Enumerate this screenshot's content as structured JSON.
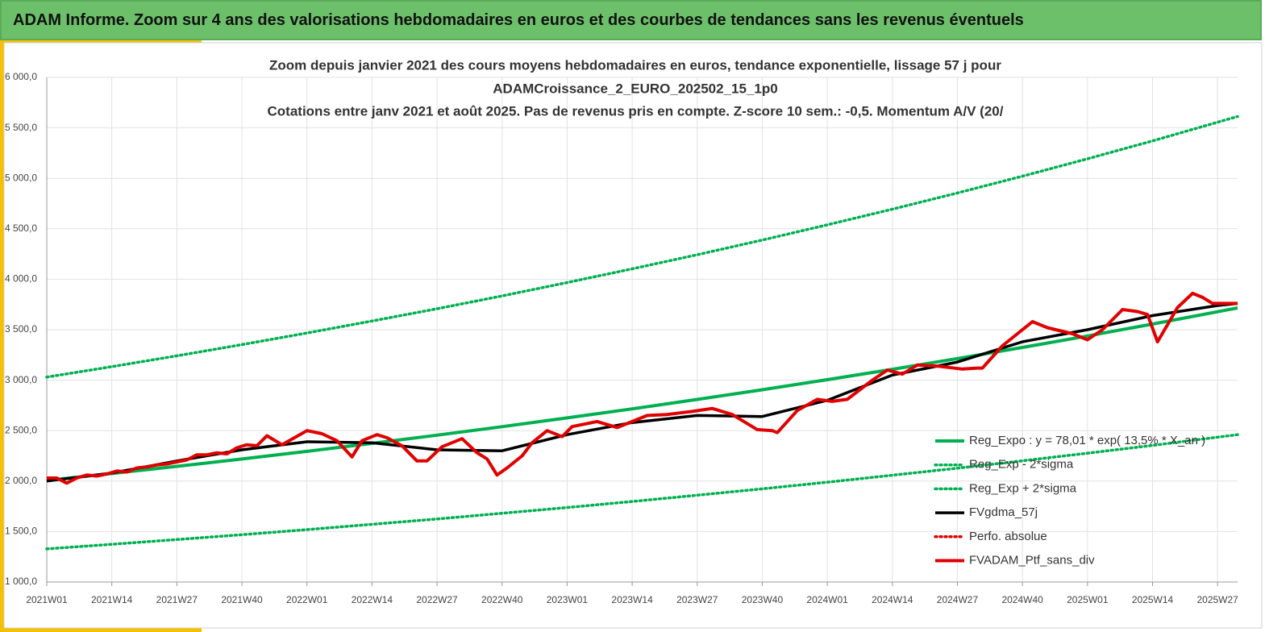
{
  "header": {
    "title": "ADAM Informe. Zoom sur 4 ans des valorisations hebdomadaires en euros et des courbes de tendances sans les revenus éventuels"
  },
  "chart_data": {
    "type": "line",
    "title": [
      "Zoom depuis janvier 2021 des cours moyens hebdomadaires  en euros, tendance exponentielle, lissage 57 j pour",
      "ADAMCroissance_2_EURO_202502_15_1p0",
      "Cotations  entre janv 2021 et août 2025. Pas de revenus pris en compte. Z-score 10 sem.: -0,5. Momentum A/V (20/"
    ],
    "xlim": [
      0,
      238
    ],
    "xticks": [
      {
        "value": 0,
        "label": "2021W01"
      },
      {
        "value": 13,
        "label": "2021W14"
      },
      {
        "value": 26,
        "label": "2021W27"
      },
      {
        "value": 39,
        "label": "2021W40"
      },
      {
        "value": 52,
        "label": "2022W01"
      },
      {
        "value": 65,
        "label": "2022W14"
      },
      {
        "value": 78,
        "label": "2022W27"
      },
      {
        "value": 91,
        "label": "2022W40"
      },
      {
        "value": 104,
        "label": "2023W01"
      },
      {
        "value": 117,
        "label": "2023W14"
      },
      {
        "value": 130,
        "label": "2023W27"
      },
      {
        "value": 143,
        "label": "2023W40"
      },
      {
        "value": 156,
        "label": "2024W01"
      },
      {
        "value": 169,
        "label": "2024W14"
      },
      {
        "value": 182,
        "label": "2024W27"
      },
      {
        "value": 195,
        "label": "2024W40"
      },
      {
        "value": 208,
        "label": "2025W01"
      },
      {
        "value": 221,
        "label": "2025W14"
      },
      {
        "value": 234,
        "label": "2025W27"
      }
    ],
    "ylim": [
      1000,
      6000
    ],
    "yticks": [
      {
        "value": 1000,
        "label": "1 000,0"
      },
      {
        "value": 1500,
        "label": "1 500,0"
      },
      {
        "value": 2000,
        "label": "2 000,0"
      },
      {
        "value": 2500,
        "label": "2 500,0"
      },
      {
        "value": 3000,
        "label": "3 000,0"
      },
      {
        "value": 3500,
        "label": "3 500,0"
      },
      {
        "value": 4000,
        "label": "4 000,0"
      },
      {
        "value": 4500,
        "label": "4 500,0"
      },
      {
        "value": 5000,
        "label": "5 000,0"
      },
      {
        "value": 5500,
        "label": "5 500,0"
      },
      {
        "value": 6000,
        "label": "6 000,0"
      }
    ],
    "grid": true,
    "legend": "lower-right",
    "series": [
      {
        "name": "Reg_Expo : y = 78,01 * exp( 13,5% * X_an )",
        "color": "#00b050",
        "style": "solid",
        "x": [
          0,
          13,
          26,
          39,
          52,
          65,
          78,
          91,
          104,
          117,
          130,
          143,
          156,
          169,
          182,
          195,
          208,
          221,
          234,
          238
        ],
        "values": [
          2006,
          2075,
          2146,
          2219,
          2295,
          2374,
          2455,
          2539,
          2626,
          2716,
          2809,
          2905,
          3005,
          3108,
          3214,
          3324,
          3438,
          3556,
          3678,
          3716
        ]
      },
      {
        "name": "Reg_Exp - 2*sigma",
        "color": "#00b050",
        "style": "dotted",
        "x": [
          0,
          13,
          26,
          39,
          52,
          65,
          78,
          91,
          104,
          117,
          130,
          143,
          156,
          169,
          182,
          195,
          208,
          221,
          234,
          238
        ],
        "values": [
          1328,
          1374,
          1421,
          1469,
          1519,
          1572,
          1625,
          1681,
          1738,
          1798,
          1860,
          1923,
          1989,
          2058,
          2128,
          2201,
          2276,
          2354,
          2435,
          2460
        ]
      },
      {
        "name": "Reg_Exp + 2*sigma",
        "color": "#00b050",
        "style": "dotted",
        "x": [
          0,
          13,
          26,
          39,
          52,
          65,
          78,
          91,
          104,
          117,
          130,
          143,
          156,
          169,
          182,
          195,
          208,
          221,
          234,
          238
        ],
        "values": [
          3030,
          3134,
          3241,
          3352,
          3467,
          3586,
          3708,
          3835,
          3967,
          4103,
          4243,
          4388,
          4539,
          4694,
          4855,
          5021,
          5193,
          5371,
          5556,
          5613
        ]
      },
      {
        "name": "FVgdma_57j",
        "color": "#000000",
        "style": "solid",
        "x": [
          0,
          13,
          26,
          39,
          52,
          65,
          78,
          91,
          104,
          117,
          130,
          143,
          156,
          169,
          182,
          195,
          208,
          221,
          234,
          238
        ],
        "values": [
          2000,
          2080,
          2200,
          2310,
          2390,
          2380,
          2310,
          2300,
          2460,
          2580,
          2650,
          2640,
          2800,
          3050,
          3180,
          3380,
          3500,
          3640,
          3740,
          3760
        ]
      },
      {
        "name": "Perfo. absolue",
        "color": "#e00000",
        "style": "dotted",
        "x": [],
        "values": []
      },
      {
        "name": "FVADAM_Ptf_sans_div",
        "color": "#e00000",
        "style": "solid",
        "x": [
          0,
          2,
          4,
          6,
          8,
          10,
          12,
          14,
          16,
          18,
          20,
          22,
          24,
          26,
          28,
          30,
          32,
          34,
          36,
          38,
          40,
          42,
          44,
          47,
          52,
          55,
          58,
          61,
          63,
          66,
          68,
          71,
          74,
          76,
          79,
          83,
          86,
          88,
          90,
          92,
          95,
          97,
          100,
          103,
          105,
          110,
          114,
          120,
          124,
          129,
          133,
          137,
          142,
          145,
          146,
          150,
          154,
          157,
          160,
          165,
          168,
          171,
          174,
          178,
          183,
          186,
          187,
          191,
          194,
          197,
          200,
          205,
          208,
          211,
          215,
          218,
          220,
          222,
          226,
          229,
          231,
          233,
          238
        ],
        "values": [
          2030,
          2030,
          1980,
          2030,
          2060,
          2050,
          2070,
          2100,
          2090,
          2130,
          2140,
          2160,
          2170,
          2190,
          2210,
          2260,
          2260,
          2280,
          2270,
          2330,
          2360,
          2350,
          2450,
          2360,
          2500,
          2470,
          2400,
          2240,
          2400,
          2460,
          2430,
          2350,
          2200,
          2200,
          2340,
          2420,
          2280,
          2220,
          2060,
          2130,
          2250,
          2380,
          2500,
          2440,
          2540,
          2590,
          2530,
          2650,
          2660,
          2690,
          2720,
          2660,
          2510,
          2500,
          2480,
          2700,
          2810,
          2790,
          2810,
          3000,
          3100,
          3060,
          3150,
          3140,
          3110,
          3120,
          3120,
          3340,
          3460,
          3580,
          3520,
          3460,
          3400,
          3500,
          3700,
          3680,
          3650,
          3380,
          3720,
          3860,
          3820,
          3760,
          3760
        ]
      }
    ]
  }
}
